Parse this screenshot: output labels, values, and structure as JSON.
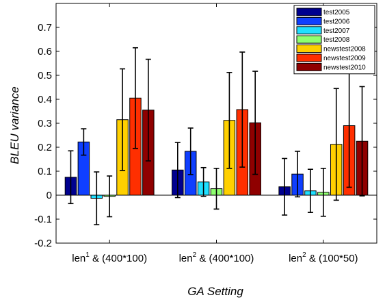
{
  "chart_data": {
    "type": "bar",
    "title": "",
    "xlabel": "GA Setting",
    "ylabel": "BLEU variance",
    "ylim": [
      -0.2,
      0.8
    ],
    "yticks": [
      "-0.2",
      "-0.1",
      "0",
      "0.1",
      "0.2",
      "0.3",
      "0.4",
      "0.5",
      "0.6",
      "0.7"
    ],
    "ytick_values": [
      -0.2,
      -0.1,
      0,
      0.1,
      0.2,
      0.3,
      0.4,
      0.5,
      0.6,
      0.7
    ],
    "grid": false,
    "legend_position": "top-right",
    "categories": [
      {
        "base": "len",
        "sup": "1",
        "rest": " & (400*100)"
      },
      {
        "base": "len",
        "sup": "2",
        "rest": " & (400*100)"
      },
      {
        "base": "len",
        "sup": "2",
        "rest": " & (100*50)"
      }
    ],
    "series": [
      {
        "name": "test2005",
        "color": "#00008f",
        "values": [
          0.075,
          0.105,
          0.035
        ],
        "err": [
          0.11,
          0.115,
          0.118
        ]
      },
      {
        "name": "test2006",
        "color": "#0f3fff",
        "values": [
          0.222,
          0.183,
          0.088
        ],
        "err": [
          0.055,
          0.097,
          0.095
        ]
      },
      {
        "name": "test2007",
        "color": "#1fdfff",
        "values": [
          -0.013,
          0.055,
          0.018
        ],
        "err": [
          0.11,
          0.06,
          0.09
        ]
      },
      {
        "name": "test2008",
        "color": "#8fff70",
        "values": [
          -0.005,
          0.027,
          0.012
        ],
        "err": [
          0.085,
          0.085,
          0.1
        ]
      },
      {
        "name": "newstest2008",
        "color": "#ffd000",
        "values": [
          0.315,
          0.312,
          0.212
        ],
        "err": [
          0.212,
          0.2,
          0.233
        ]
      },
      {
        "name": "newstest2009",
        "color": "#ff2f00",
        "values": [
          0.405,
          0.357,
          0.29
        ],
        "err": [
          0.21,
          0.24,
          0.257
        ]
      },
      {
        "name": "newstest2010",
        "color": "#8f0000",
        "values": [
          0.355,
          0.302,
          0.225
        ],
        "err": [
          0.212,
          0.215,
          0.228
        ]
      }
    ]
  }
}
